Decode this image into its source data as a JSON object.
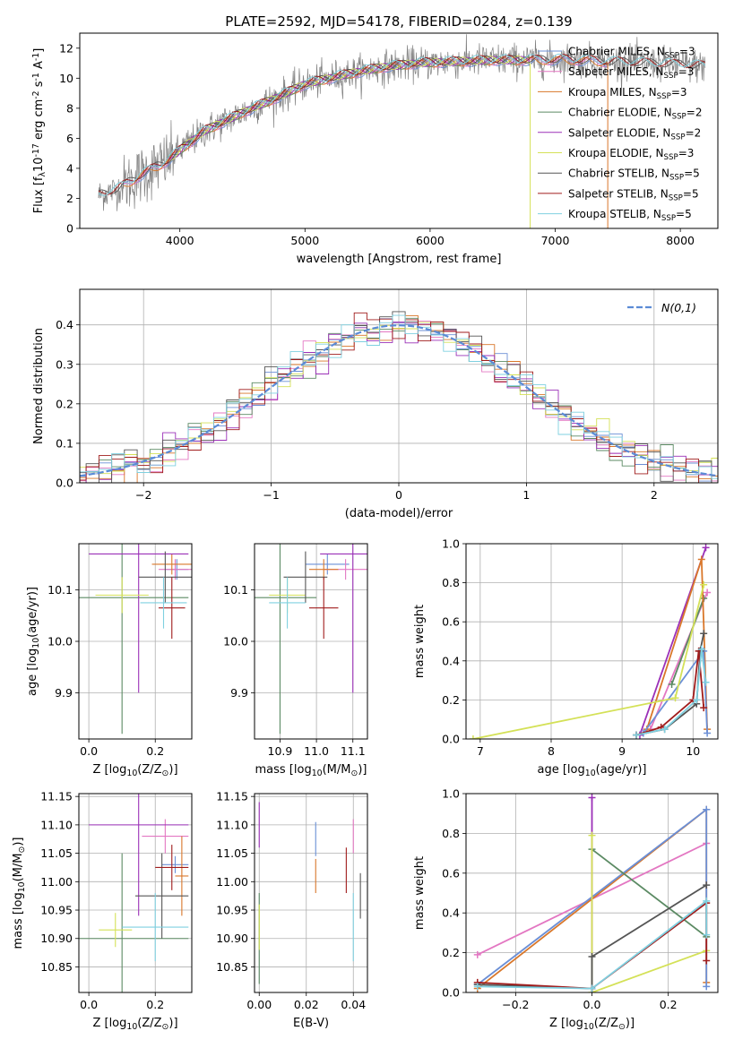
{
  "figure_title": "PLATE=2592, MJD=54178, FIBERID=0284, z=0.139",
  "colors": {
    "chabrier_miles": "#6b8fd6",
    "salpeter_miles": "#e377c2",
    "kroupa_miles": "#d9772a",
    "chabrier_elodie": "#5b8a63",
    "salpeter_elodie": "#9b30b8",
    "kroupa_elodie": "#d4e157",
    "chabrier_stelib": "#555555",
    "salpeter_stelib": "#a01c1c",
    "kroupa_stelib": "#7fd0e0",
    "data_gray": "#808080",
    "normal_curve": "#5b8bd6"
  },
  "chart_data": [
    {
      "id": "spectrum",
      "type": "line",
      "title": "PLATE=2592, MJD=54178, FIBERID=0284, z=0.139",
      "xlabel": "wavelength [Angstrom, rest frame]",
      "ylabel": "Flux [f$_\\lambda$10$^{-17}$ erg cm$^{-2}$ s$^{-1}$ A$^{-1}$]",
      "xlim": [
        3200,
        8300
      ],
      "ylim": [
        0,
        13
      ],
      "xticks": [
        4000,
        5000,
        6000,
        7000,
        8000
      ],
      "yticks": [
        0,
        2,
        4,
        6,
        8,
        10,
        12
      ],
      "grid": false,
      "legend_position": "top-right",
      "legend": [
        "Chabrier MILES, N$_{SSP}$=3",
        "Salpeter MILES, N$_{SSP}$=3",
        "Kroupa MILES, N$_{SSP}$=3",
        "Chabrier ELODIE, N$_{SSP}$=2",
        "Salpeter ELODIE, N$_{SSP}$=2",
        "Kroupa ELODIE, N$_{SSP}$=3",
        "Chabrier STELIB, N$_{SSP}$=5",
        "Salpeter STELIB, N$_{SSP}$=5",
        "Kroupa STELIB, N$_{SSP}$=5"
      ],
      "continuum": {
        "x": [
          3350,
          3500,
          3700,
          3900,
          4000,
          4200,
          4500,
          4800,
          5000,
          5300,
          5600,
          5900,
          6200,
          6500,
          6800,
          7100,
          7400,
          7700,
          8000,
          8200
        ],
        "y": [
          2.2,
          2.6,
          3.6,
          4.5,
          5.2,
          6.5,
          7.7,
          8.8,
          9.6,
          10.2,
          10.7,
          11.0,
          11.1,
          11.2,
          11.2,
          11.25,
          11.1,
          11.0,
          10.9,
          10.8
        ]
      }
    },
    {
      "id": "residuals",
      "type": "line",
      "xlabel": "(data-model)/error",
      "ylabel": "Normed distribution",
      "xlim": [
        -2.5,
        2.5
      ],
      "ylim": [
        0,
        0.49
      ],
      "xticks": [
        -2,
        -1,
        0,
        1,
        2
      ],
      "yticks": [
        0.0,
        0.1,
        0.2,
        0.3,
        0.4
      ],
      "grid": true,
      "legend_position": "top-right",
      "legend": [
        "$\\mathcal{N}(0,1)$"
      ],
      "bin_width": 0.1
    },
    {
      "id": "age_vs_Z",
      "type": "scatter",
      "xlabel": "Z [log$_{10}$(Z/Z$_\\odot$)]",
      "ylabel": "age  [log$_{10}$(age/yr)]",
      "xlim": [
        -0.03,
        0.31
      ],
      "ylim": [
        9.81,
        10.19
      ],
      "xticks": [
        0.0,
        0.2
      ],
      "yticks": [
        9.9,
        10.0,
        10.1
      ],
      "grid": true,
      "points": [
        {
          "s": "chabrier_miles",
          "x": 0.265,
          "xe": 0.035,
          "y": 10.14,
          "ye": 0.02
        },
        {
          "s": "salpeter_miles",
          "x": 0.26,
          "xe": 0.05,
          "y": 10.14,
          "ye": 0.02
        },
        {
          "s": "kroupa_miles",
          "x": 0.25,
          "xe": 0.06,
          "y": 10.15,
          "ye": 0.02
        },
        {
          "s": "chabrier_elodie",
          "x": 0.1,
          "xe": 0.2,
          "y": 10.085,
          "ye": 0.265
        },
        {
          "s": "salpeter_elodie",
          "x": 0.15,
          "xe": 0.15,
          "y": 10.17,
          "ye": 0.27
        },
        {
          "s": "kroupa_elodie",
          "x": 0.1,
          "xe": 0.08,
          "y": 10.09,
          "ye": 0.035
        },
        {
          "s": "chabrier_stelib",
          "x": 0.23,
          "xe": 0.08,
          "y": 10.125,
          "ye": 0.05
        },
        {
          "s": "salpeter_stelib",
          "x": 0.25,
          "xe": 0.04,
          "y": 10.065,
          "ye": 0.06
        },
        {
          "s": "kroupa_stelib",
          "x": 0.225,
          "xe": 0.07,
          "y": 10.075,
          "ye": 0.05
        }
      ]
    },
    {
      "id": "age_vs_mass",
      "type": "scatter",
      "xlabel": "mass [log$_{10}$(M/M$_\\odot$)]",
      "ylabel": "",
      "xlim": [
        10.83,
        11.14
      ],
      "ylim": [
        9.81,
        10.19
      ],
      "xticks": [
        10.9,
        11.0,
        11.1
      ],
      "yticks": [
        9.9,
        10.0,
        10.1
      ],
      "grid": true,
      "points": [
        {
          "s": "chabrier_miles",
          "x": 11.03,
          "xe": 0.06,
          "y": 10.15,
          "ye": 0.02
        },
        {
          "s": "salpeter_miles",
          "x": 11.08,
          "xe": 0.06,
          "y": 10.14,
          "ye": 0.02
        },
        {
          "s": "kroupa_miles",
          "x": 11.02,
          "xe": 0.04,
          "y": 10.14,
          "ye": 0.02
        },
        {
          "s": "chabrier_elodie",
          "x": 10.9,
          "xe": 0.1,
          "y": 10.085,
          "ye": 0.265
        },
        {
          "s": "salpeter_elodie",
          "x": 11.1,
          "xe": 0.09,
          "y": 10.17,
          "ye": 0.27
        },
        {
          "s": "kroupa_elodie",
          "x": 10.92,
          "xe": 0.05,
          "y": 10.09,
          "ye": 0.035
        },
        {
          "s": "chabrier_stelib",
          "x": 10.97,
          "xe": 0.06,
          "y": 10.125,
          "ye": 0.05
        },
        {
          "s": "salpeter_stelib",
          "x": 11.02,
          "xe": 0.04,
          "y": 10.065,
          "ye": 0.06
        },
        {
          "s": "kroupa_stelib",
          "x": 10.92,
          "xe": 0.05,
          "y": 10.075,
          "ye": 0.05
        }
      ]
    },
    {
      "id": "weight_vs_age",
      "type": "line",
      "xlabel": "age  [log$_{10}$(age/yr)]",
      "ylabel": "mass weight",
      "xlim": [
        6.8,
        10.35
      ],
      "ylim": [
        0,
        1.0
      ],
      "xticks": [
        7,
        8,
        9,
        10
      ],
      "yticks": [
        0.0,
        0.2,
        0.4,
        0.6,
        0.8,
        1.0
      ],
      "grid": true,
      "series": [
        {
          "s": "salpeter_miles",
          "x": [
            9.4,
            10.2
          ],
          "y": [
            0.05,
            0.75
          ]
        },
        {
          "s": "chabrier_elodie",
          "x": [
            9.7,
            10.15
          ],
          "y": [
            0.28,
            0.72
          ]
        },
        {
          "s": "salpeter_elodie",
          "x": [
            9.25,
            10.18
          ],
          "y": [
            0.02,
            0.98
          ]
        },
        {
          "s": "kroupa_miles",
          "x": [
            9.35,
            10.12,
            10.2
          ],
          "y": [
            0.05,
            0.92,
            0.05
          ]
        },
        {
          "s": "chabrier_miles",
          "x": [
            9.3,
            10.15,
            10.2
          ],
          "y": [
            0.03,
            0.45,
            0.03
          ]
        },
        {
          "s": "kroupa_elodie",
          "x": [
            6.9,
            9.75,
            10.15
          ],
          "y": [
            0.0,
            0.21,
            0.79
          ]
        },
        {
          "s": "chabrier_stelib",
          "x": [
            9.2,
            9.6,
            10.05,
            10.1,
            10.15
          ],
          "y": [
            0.02,
            0.05,
            0.18,
            0.45,
            0.54
          ]
        },
        {
          "s": "salpeter_stelib",
          "x": [
            9.2,
            9.55,
            10.0,
            10.08,
            10.15
          ],
          "y": [
            0.02,
            0.06,
            0.2,
            0.45,
            0.16
          ]
        },
        {
          "s": "kroupa_stelib",
          "x": [
            9.2,
            9.6,
            10.05,
            10.12,
            10.18
          ],
          "y": [
            0.02,
            0.05,
            0.2,
            0.46,
            0.29
          ]
        }
      ]
    },
    {
      "id": "mass_vs_Z",
      "type": "scatter",
      "xlabel": "Z [log$_{10}$(Z/Z$_\\odot$)]",
      "ylabel": "mass [log$_{10}$(M/M$_\\odot$)]",
      "xlim": [
        -0.03,
        0.31
      ],
      "ylim": [
        10.805,
        11.155
      ],
      "xticks": [
        0.0,
        0.2
      ],
      "yticks": [
        10.85,
        10.9,
        10.95,
        11.0,
        11.05,
        11.1,
        11.15
      ],
      "grid": true,
      "points": [
        {
          "s": "chabrier_miles",
          "x": 0.26,
          "xe": 0.04,
          "y": 11.03,
          "ye": 0.015
        },
        {
          "s": "salpeter_miles",
          "x": 0.23,
          "xe": 0.07,
          "y": 11.08,
          "ye": 0.03
        },
        {
          "s": "kroupa_miles",
          "x": 0.28,
          "xe": 0.02,
          "y": 11.01,
          "ye": 0.07
        },
        {
          "s": "chabrier_elodie",
          "x": 0.1,
          "xe": 0.2,
          "y": 10.9,
          "ye": 0.15
        },
        {
          "s": "salpeter_elodie",
          "x": 0.15,
          "xe": 0.15,
          "y": 11.1,
          "ye": 0.16
        },
        {
          "s": "kroupa_elodie",
          "x": 0.08,
          "xe": 0.05,
          "y": 10.915,
          "ye": 0.03
        },
        {
          "s": "chabrier_stelib",
          "x": 0.22,
          "xe": 0.08,
          "y": 10.975,
          "ye": 0.075
        },
        {
          "s": "salpeter_stelib",
          "x": 0.25,
          "xe": 0.05,
          "y": 11.025,
          "ye": 0.04
        },
        {
          "s": "kroupa_stelib",
          "x": 0.2,
          "xe": 0.1,
          "y": 10.92,
          "ye": 0.06
        }
      ]
    },
    {
      "id": "mass_vs_ebv",
      "type": "scatter",
      "xlabel": "E(B-V)",
      "ylabel": "",
      "xlim": [
        -0.002,
        0.046
      ],
      "ylim": [
        10.805,
        11.155
      ],
      "xticks": [
        0.0,
        0.02,
        0.04
      ],
      "yticks": [
        10.85,
        10.9,
        10.95,
        11.0,
        11.05,
        11.1,
        11.15
      ],
      "grid": true,
      "points": [
        {
          "s": "chabrier_miles",
          "x": 0.024,
          "xe": 0,
          "y": 11.075,
          "ye": 0.03
        },
        {
          "s": "salpeter_miles",
          "x": 0.04,
          "xe": 0,
          "y": 11.08,
          "ye": 0.03
        },
        {
          "s": "kroupa_miles",
          "x": 0.024,
          "xe": 0,
          "y": 11.01,
          "ye": 0.03
        },
        {
          "s": "chabrier_elodie",
          "x": 0.0,
          "xe": 0,
          "y": 10.9,
          "ye": 0.08
        },
        {
          "s": "salpeter_elodie",
          "x": 0.0,
          "xe": 0,
          "y": 11.1,
          "ye": 0.04
        },
        {
          "s": "kroupa_elodie",
          "x": 0.0,
          "xe": 0,
          "y": 10.92,
          "ye": 0.04
        },
        {
          "s": "chabrier_stelib",
          "x": 0.043,
          "xe": 0,
          "y": 10.975,
          "ye": 0.04
        },
        {
          "s": "salpeter_stelib",
          "x": 0.037,
          "xe": 0,
          "y": 11.02,
          "ye": 0.04
        },
        {
          "s": "kroupa_stelib",
          "x": 0.04,
          "xe": 0,
          "y": 10.92,
          "ye": 0.06
        }
      ]
    },
    {
      "id": "weight_vs_Z",
      "type": "line",
      "xlabel": "Z [log$_{10}$(Z/Z$_\\odot$)]",
      "ylabel": "mass weight",
      "xlim": [
        -0.33,
        0.33
      ],
      "ylim": [
        0,
        1.0
      ],
      "xticks": [
        -0.2,
        0.0,
        0.2
      ],
      "yticks": [
        0.0,
        0.2,
        0.4,
        0.6,
        0.8,
        1.0
      ],
      "grid": true,
      "series": [
        {
          "s": "salpeter_miles",
          "x": [
            -0.3,
            0.3
          ],
          "y": [
            0.19,
            0.75
          ]
        },
        {
          "s": "kroupa_miles",
          "x": [
            -0.3,
            0.3,
            0.3
          ],
          "y": [
            0.02,
            0.92,
            0.05
          ]
        },
        {
          "s": "chabrier_miles",
          "x": [
            -0.3,
            0.3,
            0.3
          ],
          "y": [
            0.04,
            0.92,
            0.03
          ]
        },
        {
          "s": "chabrier_elodie",
          "x": [
            0.0,
            0.3
          ],
          "y": [
            0.72,
            0.28
          ]
        },
        {
          "s": "salpeter_elodie",
          "x": [
            0.0,
            0.0
          ],
          "y": [
            0.98,
            0.02
          ]
        },
        {
          "s": "kroupa_elodie",
          "x": [
            0.0,
            0.0,
            0.3
          ],
          "y": [
            0.79,
            0.0,
            0.21
          ]
        },
        {
          "s": "chabrier_stelib",
          "x": [
            -0.3,
            0.0,
            0.0,
            0.3
          ],
          "y": [
            0.04,
            0.02,
            0.18,
            0.54
          ]
        },
        {
          "s": "salpeter_stelib",
          "x": [
            -0.3,
            0.0,
            0.3,
            0.3
          ],
          "y": [
            0.05,
            0.02,
            0.45,
            0.16
          ]
        },
        {
          "s": "kroupa_stelib",
          "x": [
            -0.3,
            0.0,
            0.3,
            0.3
          ],
          "y": [
            0.03,
            0.02,
            0.46,
            0.29
          ]
        }
      ]
    }
  ]
}
